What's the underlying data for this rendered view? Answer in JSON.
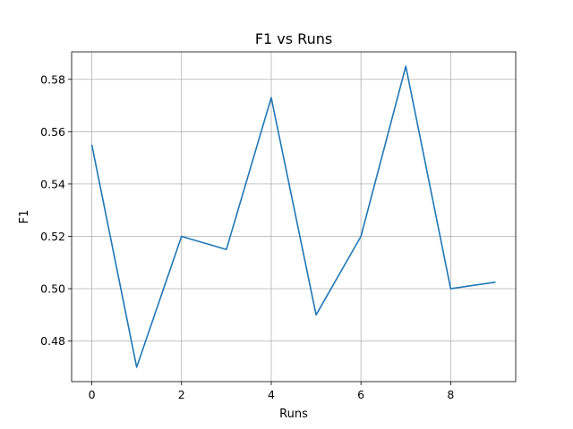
{
  "chart_data": {
    "type": "line",
    "title": "F1 vs Runs",
    "xlabel": "Runs",
    "ylabel": "F1",
    "x": [
      0,
      1,
      2,
      3,
      4,
      5,
      6,
      7,
      8,
      9
    ],
    "series": [
      {
        "values": [
          0.555,
          0.47,
          0.52,
          0.515,
          0.573,
          0.49,
          0.52,
          0.585,
          0.5,
          0.5025
        ],
        "color": "#1f77b4"
      }
    ],
    "xlim": [
      -0.45,
      9.45
    ],
    "ylim": [
      0.4645,
      0.5905
    ],
    "xticks": [
      0,
      2,
      4,
      6,
      8
    ],
    "yticks": [
      0.48,
      0.5,
      0.52,
      0.54,
      0.56,
      0.58
    ],
    "grid": true,
    "legend": false
  }
}
